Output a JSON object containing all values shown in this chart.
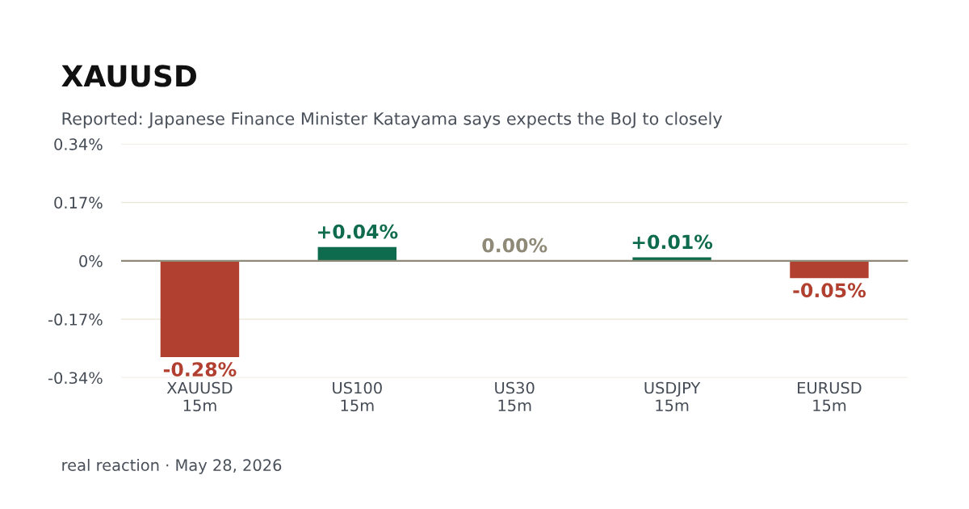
{
  "chart_data": {
    "type": "bar",
    "title": "XAUUSD",
    "subtitle": "Reported: Japanese Finance Minister Katayama says expects the BoJ to closely",
    "categories": [
      "XAUUSD\n15m",
      "US100\n15m",
      "US30\n15m",
      "USDJPY\n15m",
      "EURUSD\n15m"
    ],
    "values": [
      -0.28,
      0.04,
      0.0,
      0.01,
      -0.05
    ],
    "colors": [
      "#b24030",
      "#0f6b4d",
      "#8f8a78",
      "#0f6b4d",
      "#b24030"
    ],
    "value_labels": [
      "-0.28%",
      "+0.04%",
      "0.00%",
      "+0.01%",
      "-0.05%"
    ],
    "ylim": [
      -0.34,
      0.34
    ],
    "yticks": [
      {
        "value": -0.34,
        "label": "-0.34%"
      },
      {
        "value": -0.17,
        "label": "-0.17%"
      },
      {
        "value": 0,
        "label": "0%"
      },
      {
        "value": 0.17,
        "label": "0.17%"
      },
      {
        "value": 0.34,
        "label": "0.34%"
      }
    ],
    "grid": "y",
    "ref_lines": [
      {
        "axis": "y",
        "value": 0,
        "color": "#8f8a78"
      }
    ],
    "annotations": [
      "real reaction · May 28, 2026"
    ]
  }
}
